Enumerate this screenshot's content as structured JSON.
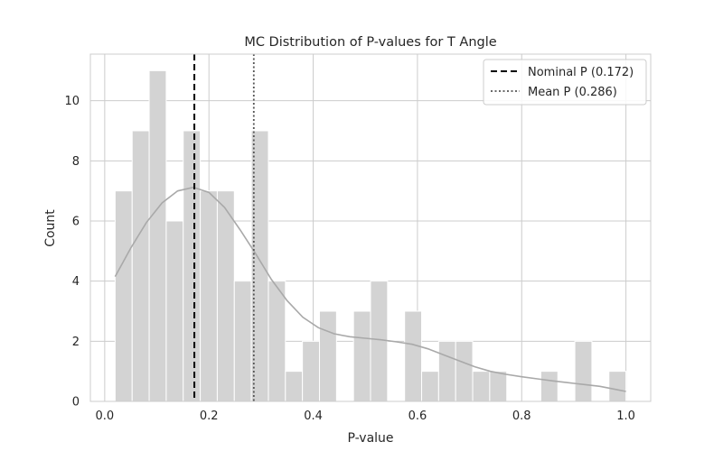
{
  "chart_data": {
    "type": "bar",
    "title": "MC Distribution of P-values for T Angle",
    "xlabel": "P-value",
    "ylabel": "Count",
    "xlim": [
      -0.0275,
      1.0475
    ],
    "ylim": [
      0,
      11.55
    ],
    "x_ticks": [
      0.0,
      0.2,
      0.4,
      0.6,
      0.8,
      1.0
    ],
    "x_tick_labels": [
      "0.0",
      "0.2",
      "0.4",
      "0.6",
      "0.8",
      "1.0"
    ],
    "y_ticks": [
      0,
      2,
      4,
      6,
      8,
      10
    ],
    "y_tick_labels": [
      "0",
      "2",
      "4",
      "6",
      "8",
      "10"
    ],
    "grid": true,
    "legend_position": "upper right",
    "bin_start": 0.02,
    "bin_width": 0.032667,
    "counts": [
      7,
      9,
      11,
      6,
      9,
      7,
      7,
      4,
      9,
      4,
      1,
      2,
      3,
      0,
      3,
      4,
      0,
      3,
      1,
      2,
      2,
      1,
      1,
      0,
      0,
      1,
      0,
      2,
      0,
      1
    ],
    "kde_x": [
      0.02,
      0.05,
      0.08,
      0.11,
      0.14,
      0.17,
      0.2,
      0.23,
      0.26,
      0.29,
      0.32,
      0.35,
      0.38,
      0.41,
      0.44,
      0.47,
      0.5,
      0.53,
      0.56,
      0.59,
      0.62,
      0.65,
      0.68,
      0.71,
      0.74,
      0.77,
      0.8,
      0.83,
      0.86,
      0.89,
      0.92,
      0.95,
      0.98,
      1.0
    ],
    "kde_y": [
      4.15,
      5.1,
      5.95,
      6.6,
      7.0,
      7.12,
      6.95,
      6.45,
      5.7,
      4.9,
      4.05,
      3.35,
      2.8,
      2.45,
      2.25,
      2.15,
      2.1,
      2.05,
      1.98,
      1.9,
      1.75,
      1.55,
      1.35,
      1.15,
      1.0,
      0.9,
      0.82,
      0.75,
      0.68,
      0.62,
      0.56,
      0.5,
      0.4,
      0.33
    ],
    "lines": [
      {
        "name": "Nominal P (0.172)",
        "x": 0.172,
        "style": "dashed",
        "color": "#000000"
      },
      {
        "name": "Mean P (0.286)",
        "x": 0.286,
        "style": "dotted",
        "color": "#555555"
      }
    ],
    "colors": {
      "bar_fill": "#d3d3d3",
      "bar_edge": "#ffffff",
      "kde_line": "#a9a9a9",
      "grid": "#cccccc",
      "spine": "#cccccc"
    }
  }
}
